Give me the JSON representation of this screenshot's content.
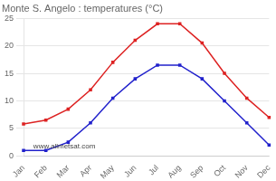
{
  "chart_data": {
    "type": "line",
    "title": "Monte S. Angelo : temperatures (°C)",
    "categories": [
      "Jan",
      "Feb",
      "Mar",
      "Apr",
      "May",
      "Jun",
      "Jul",
      "Aug",
      "Sep",
      "Oct",
      "Nov",
      "Dec"
    ],
    "series": [
      {
        "color": "#dd2222",
        "marker": "square",
        "line_style": "solid",
        "values": [
          5.8,
          6.5,
          8.5,
          12.0,
          17.0,
          21.0,
          24.0,
          24.0,
          20.5,
          15.0,
          10.5,
          7.0
        ]
      },
      {
        "color": "#2222cc",
        "marker": "square",
        "line_style": "solid",
        "values": [
          1.0,
          1.0,
          2.5,
          6.0,
          10.5,
          14.0,
          16.5,
          16.5,
          14.0,
          10.0,
          6.0,
          2.0
        ]
      }
    ],
    "ylim": [
      0,
      25
    ],
    "yticks": [
      0,
      5,
      10,
      15,
      20,
      25
    ],
    "grid": true,
    "annotation": "www.allmetsat.com"
  }
}
